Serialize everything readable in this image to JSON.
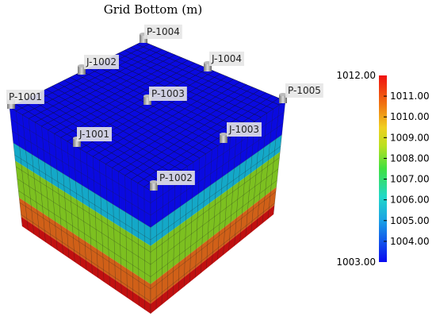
{
  "title": "Grid Bottom (m)",
  "wells": [
    {
      "label": "P-1004"
    },
    {
      "label": "J-1002"
    },
    {
      "label": "J-1004"
    },
    {
      "label": "P-1001"
    },
    {
      "label": "P-1003"
    },
    {
      "label": "P-1005"
    },
    {
      "label": "J-1001"
    },
    {
      "label": "J-1003"
    },
    {
      "label": "P-1002"
    }
  ],
  "colorbar": {
    "min": {
      "value": 1003,
      "label": "1003.00"
    },
    "max": {
      "value": 1012,
      "label": "1012.00"
    },
    "ticks": [
      {
        "value": 1011,
        "label": "1011.00"
      },
      {
        "value": 1010,
        "label": "1010.00"
      },
      {
        "value": 1009,
        "label": "1009.00"
      },
      {
        "value": 1008,
        "label": "1008.00"
      },
      {
        "value": 1007,
        "label": "1007.00"
      },
      {
        "value": 1006,
        "label": "1006.00"
      },
      {
        "value": 1005,
        "label": "1005.00"
      },
      {
        "value": 1004,
        "label": "1004.00"
      }
    ]
  }
}
